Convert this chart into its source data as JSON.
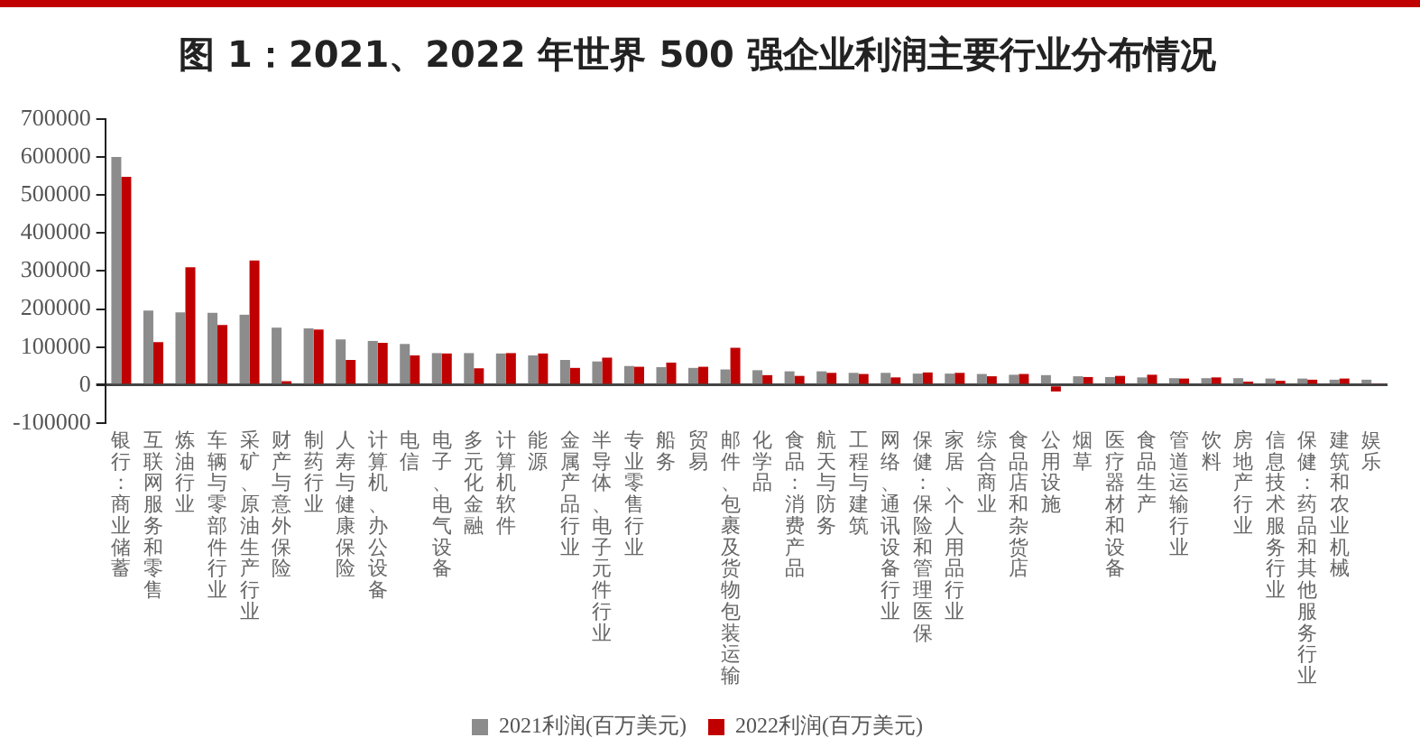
{
  "chart_data": {
    "type": "bar",
    "title": "图 1：2021、2022 年世界 500 强企业利润主要行业分布情况",
    "categories": [
      "银行：商业储蓄",
      "互联网服务和零售",
      "炼油行业",
      "车辆与零部件行业",
      "采矿、原油生产行业",
      "财产与意外保险",
      "制药行业",
      "人寿与健康保险",
      "计算机、办公设备",
      "电信",
      "电子、电气设备",
      "多元化金融",
      "计算机软件",
      "能源",
      "金属产品行业",
      "半导体、电子元件行业",
      "专业零售行业",
      "船务",
      "贸易",
      "邮件、包裹及货物包装运输",
      "化学品",
      "食品：消费产品",
      "航天与防务",
      "工程与建筑",
      "网络、通讯设备行业",
      "保健：保险和管理医保",
      "家居、个人用品行业",
      "综合商业",
      "食品店和杂货店",
      "公用设施",
      "烟草",
      "医疗器材和设备",
      "食品生产",
      "管道运输行业",
      "饮料",
      "房地产行业",
      "信息技术服务行业",
      "保健：药品和其他服务行业",
      "建筑和农业机械",
      "娱乐"
    ],
    "series": [
      {
        "name": "2021利润(百万美元)",
        "color": "#8c8c8c",
        "values": [
          600000,
          196000,
          191000,
          190000,
          185000,
          151000,
          149000,
          120000,
          116000,
          108000,
          84000,
          84000,
          83000,
          78000,
          66000,
          62000,
          50000,
          47000,
          45000,
          41000,
          39000,
          36000,
          36000,
          32000,
          32000,
          30000,
          30000,
          29000,
          27000,
          26000,
          23000,
          21000,
          20000,
          18000,
          18000,
          18000,
          17000,
          17000,
          14000,
          14000
        ]
      },
      {
        "name": "2022利润(百万美元)",
        "color": "#c00000",
        "values": [
          548000,
          113000,
          310000,
          158000,
          328000,
          10000,
          146000,
          66000,
          111000,
          78000,
          83000,
          44000,
          84000,
          83000,
          45000,
          72000,
          48000,
          59000,
          48000,
          98000,
          26000,
          24000,
          32000,
          29000,
          20000,
          33000,
          32000,
          23000,
          29000,
          -17000,
          21000,
          24000,
          27000,
          17000,
          20000,
          9000,
          11000,
          14000,
          17000,
          3000
        ]
      }
    ],
    "ylim": [
      -100000,
      700000
    ],
    "yticks": [
      -100000,
      0,
      100000,
      200000,
      300000,
      400000,
      500000,
      600000,
      700000
    ],
    "grid": false,
    "legend": "bottom"
  }
}
